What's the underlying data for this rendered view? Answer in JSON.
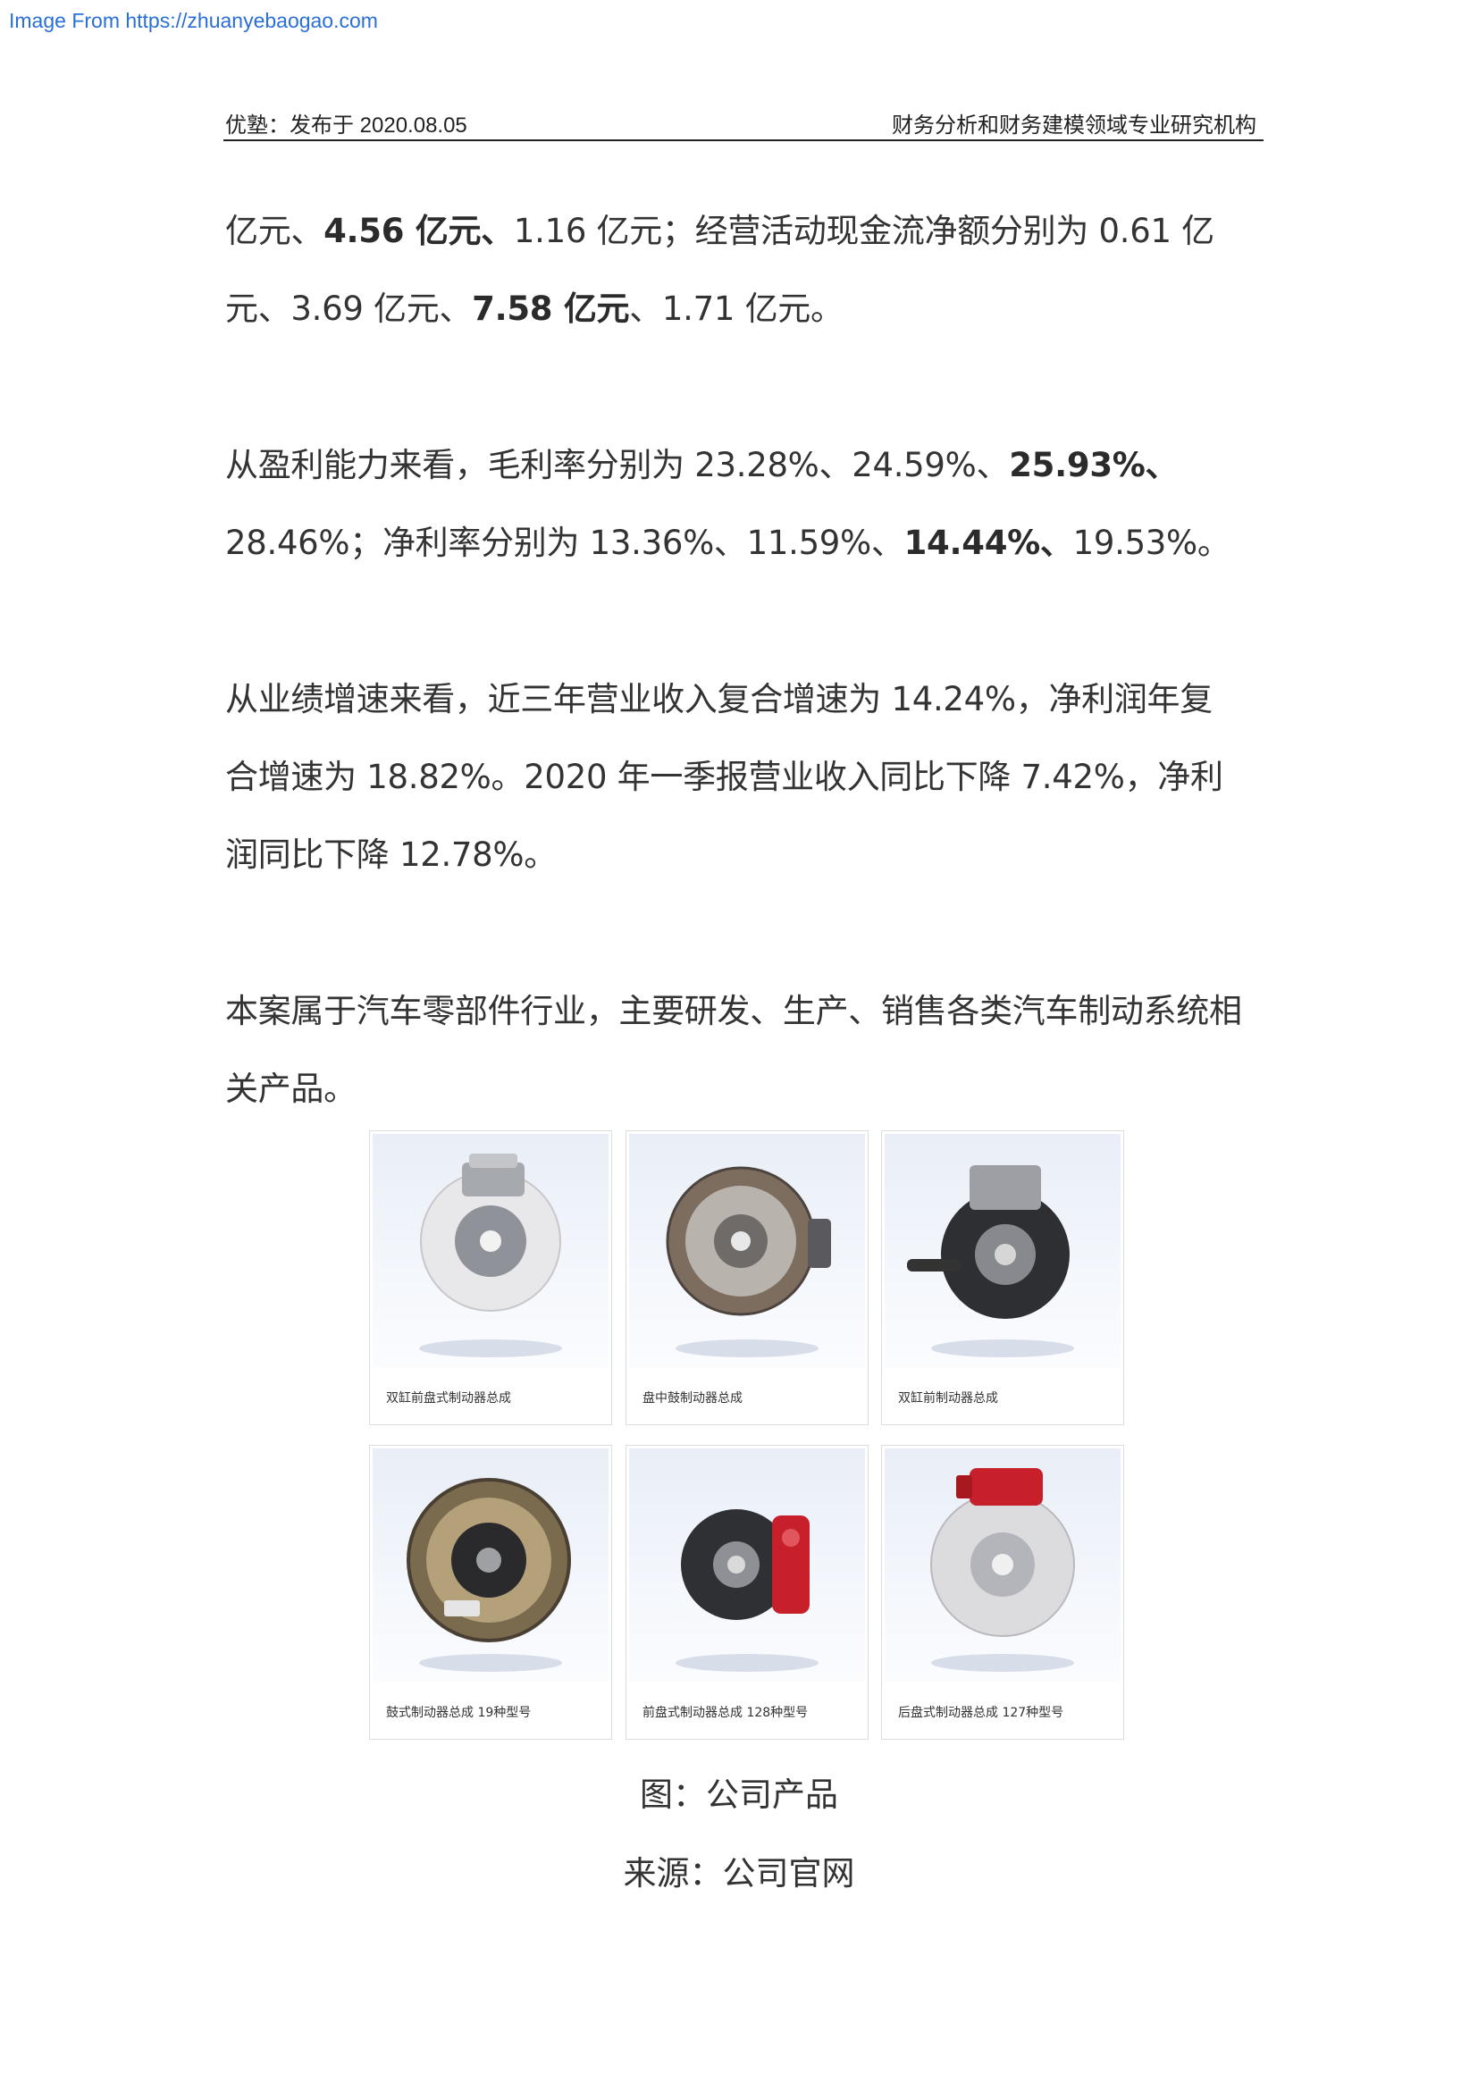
{
  "watermark": "Image From https://zhuanyebaogao.com",
  "header": {
    "left": "优塾：发布于 2020.08.05",
    "right": "财务分析和财务建模领域专业研究机构"
  },
  "paragraphs": {
    "p1": {
      "a": "亿元、",
      "b1": "4.56 亿元、",
      "c": "1.16 亿元；经营活动现金流净额分别为 0.61 亿元、3.69 亿元、",
      "b2": "7.58 亿元",
      "d": "、1.71 亿元。"
    },
    "p2": {
      "a": "从盈利能力来看，毛利率分别为 23.28%、24.59%、",
      "b1": "25.93%、",
      "c": "28.46%；净利率分别为 13.36%、11.59%、",
      "b2": "14.44%、",
      "d": "19.53%。"
    },
    "p3": "从业绩增速来看，近三年营业收入复合增速为 14.24%，净利润年复合增速为 18.82%。2020 年一季报营业收入同比下降 7.42%，净利润同比下降 12.78%。",
    "p4": "本案属于汽车零部件行业，主要研发、生产、销售各类汽车制动系统相关产品。"
  },
  "products": [
    {
      "caption": "双缸前盘式制动器总成",
      "icon": "disc-brake-icon"
    },
    {
      "caption": "盘中鼓制动器总成",
      "icon": "drum-in-disc-brake-icon"
    },
    {
      "caption": "双缸前制动器总成",
      "icon": "front-brake-knuckle-icon"
    },
    {
      "caption": "鼓式制动器总成 19种型号",
      "icon": "drum-brake-icon"
    },
    {
      "caption": "前盘式制动器总成 128种型号",
      "icon": "front-disc-brake-red-icon"
    },
    {
      "caption": "后盘式制动器总成 127种型号",
      "icon": "rear-disc-brake-red-icon"
    }
  ],
  "figure": {
    "title": "图：公司产品",
    "source": "来源：公司官网"
  },
  "colors": {
    "text": "#333333",
    "watermark": "#2a6fd6",
    "caliper_red": "#c8202a"
  }
}
